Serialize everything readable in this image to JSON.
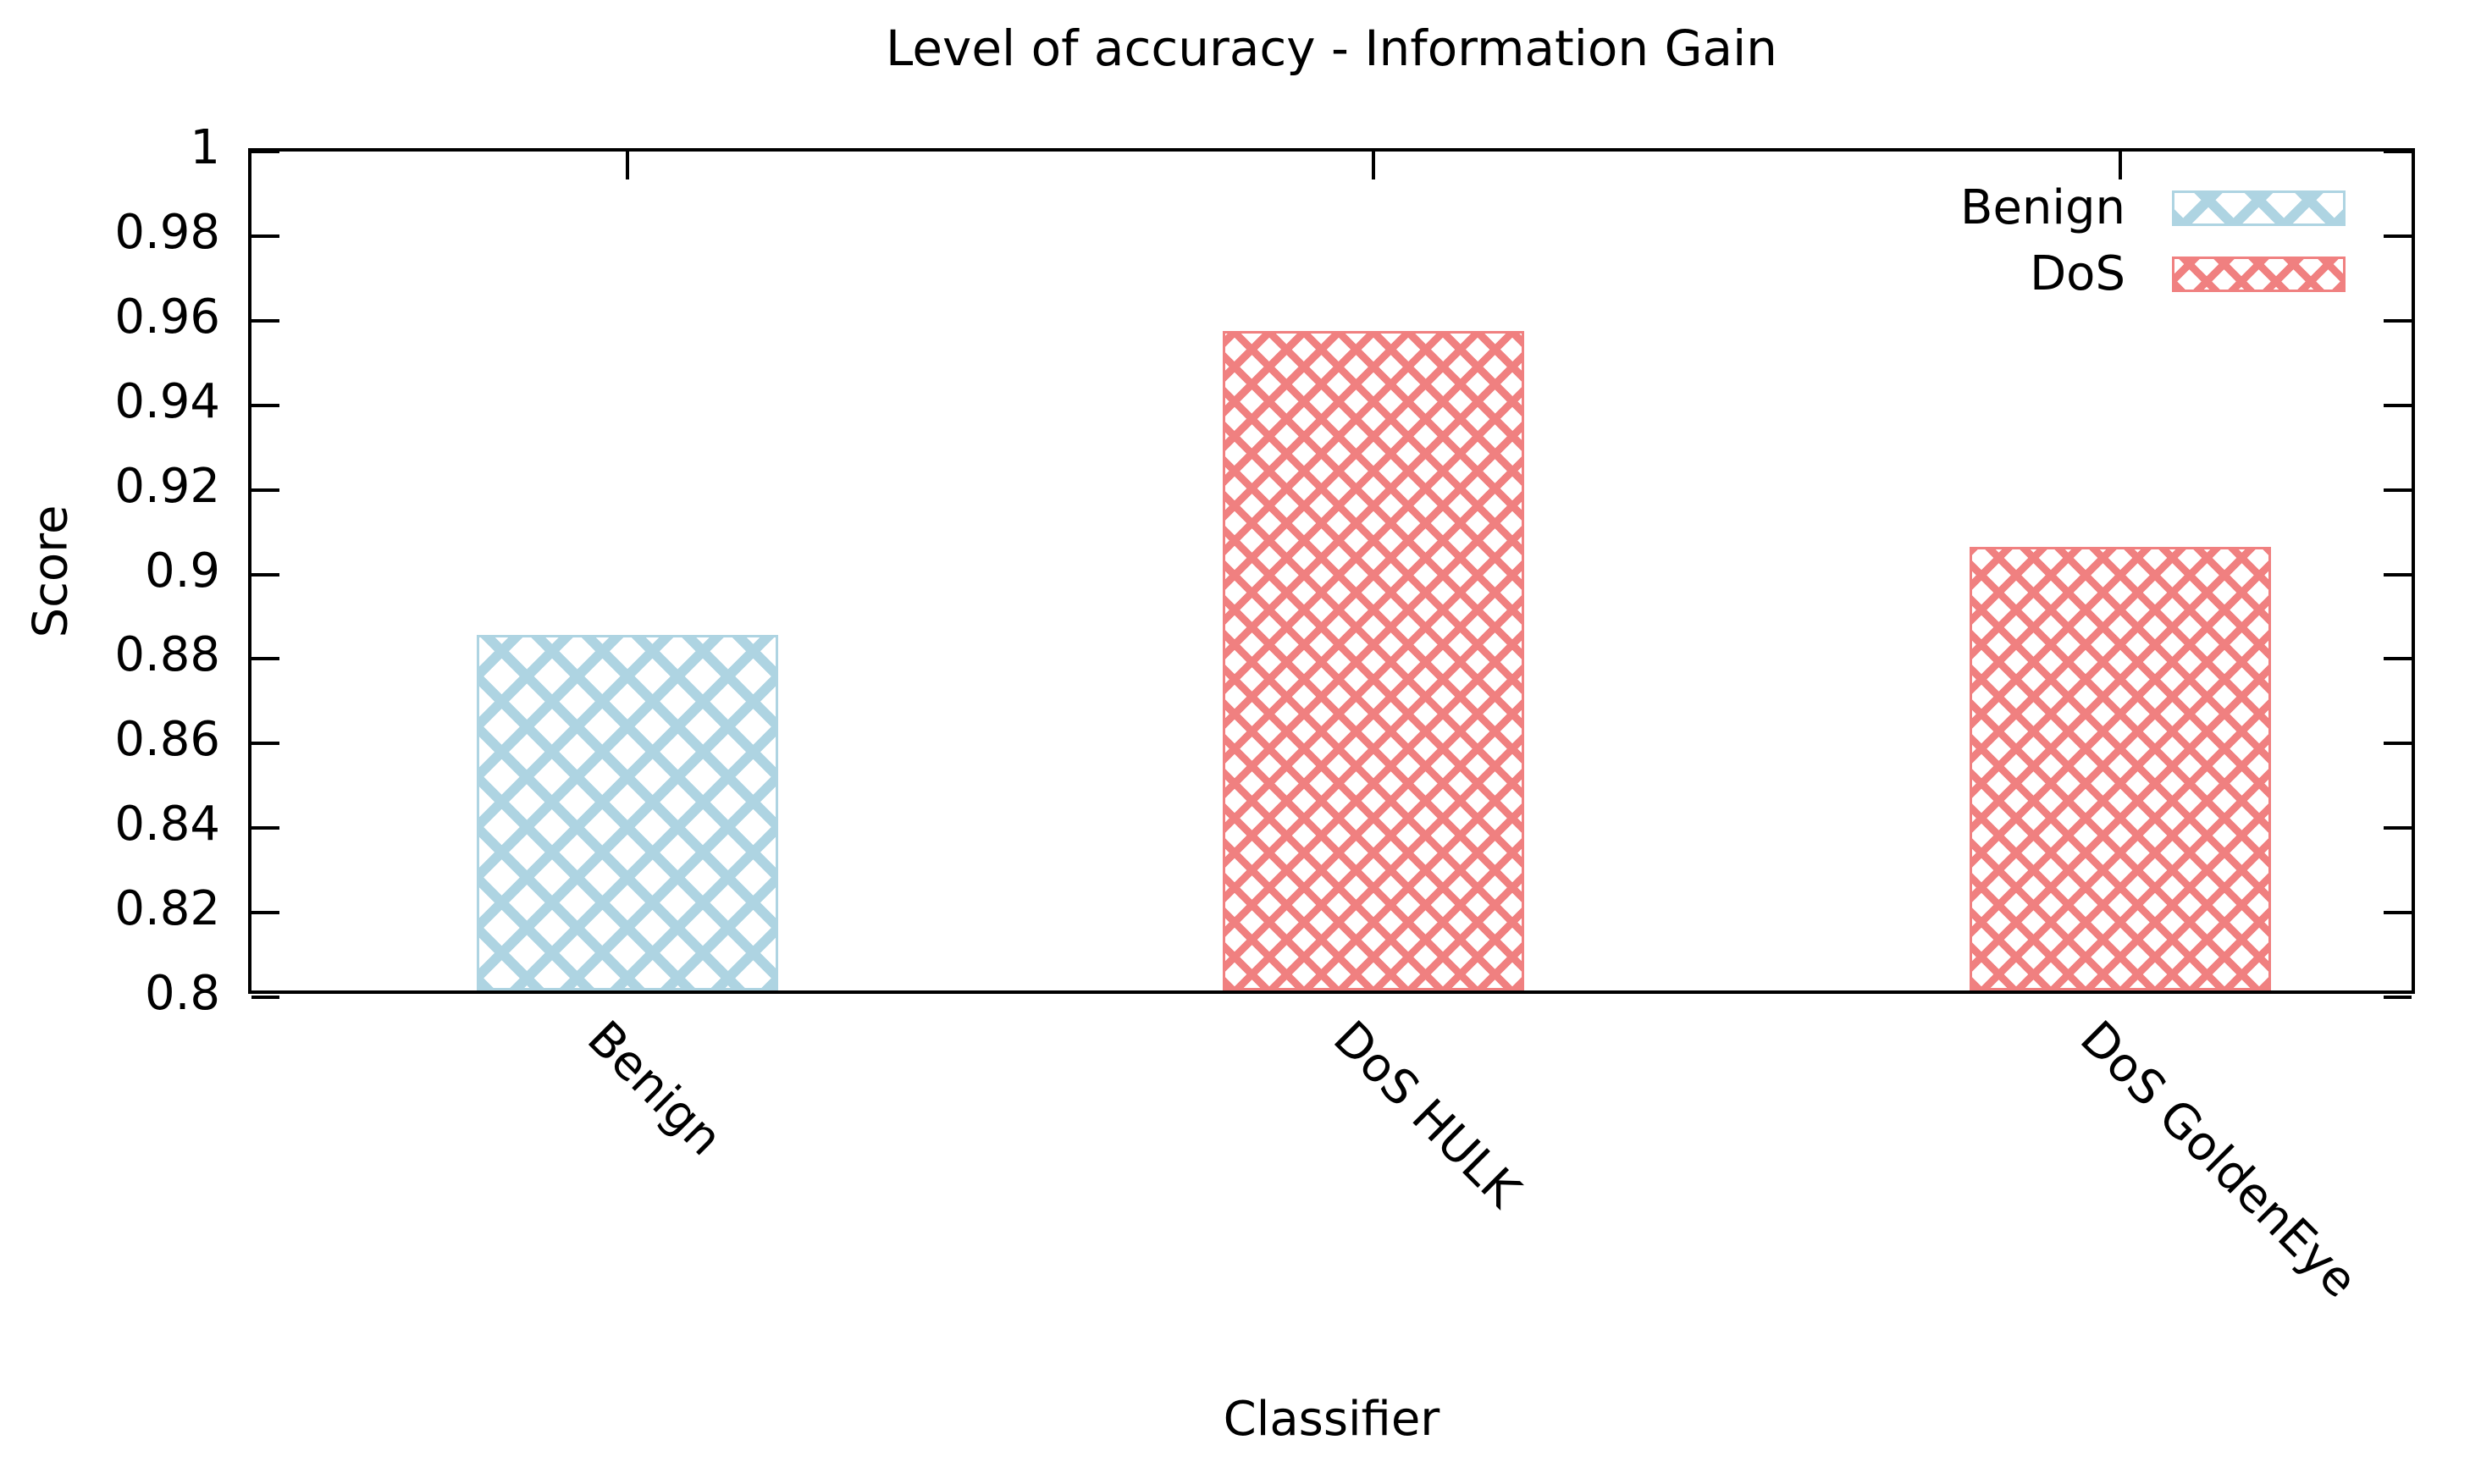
{
  "chart_data": {
    "type": "bar",
    "title": "Level of accuracy - Information Gain",
    "xlabel": "Classifier",
    "ylabel": "Score",
    "categories": [
      "Benign",
      "DoS HULK",
      "DoS GoldenEye"
    ],
    "series": [
      {
        "name": "Benign",
        "color": "#aed4e2"
      },
      {
        "name": "DoS",
        "color": "#f08080"
      }
    ],
    "bars": [
      {
        "category": "Benign",
        "series": "Benign",
        "value": 0.884
      },
      {
        "category": "DoS HULK",
        "series": "DoS",
        "value": 0.956
      },
      {
        "category": "DoS GoldenEye",
        "series": "DoS",
        "value": 0.905
      }
    ],
    "ylim": [
      0.8,
      1.0
    ],
    "yticks": [
      "0.8",
      "0.82",
      "0.84",
      "0.86",
      "0.88",
      "0.9",
      "0.92",
      "0.94",
      "0.96",
      "0.98",
      "1"
    ],
    "grid": false,
    "legend_position": "top-right",
    "axis_color": "#000000",
    "background_color": "#ffffff"
  }
}
